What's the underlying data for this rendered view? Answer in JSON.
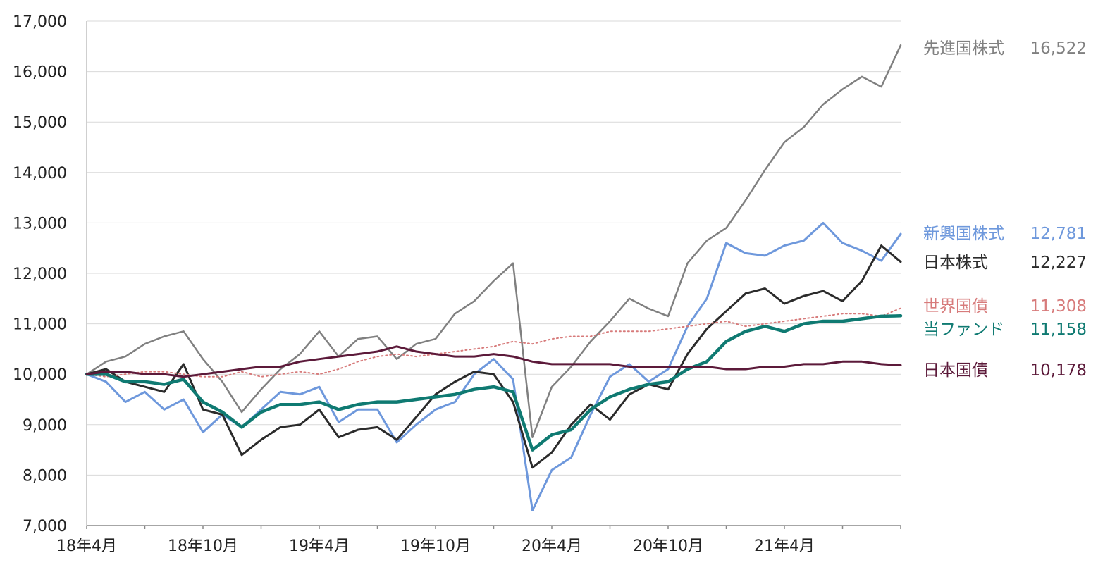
{
  "chart_data": {
    "type": "line",
    "x_ticks": [
      "18年4月",
      "18年10月",
      "19年4月",
      "19年10月",
      "20年4月",
      "20年10月",
      "21年4月"
    ],
    "y_ticks": [
      "7,000",
      "8,000",
      "9,000",
      "10,000",
      "11,000",
      "12,000",
      "13,000",
      "14,000",
      "15,000",
      "16,000",
      "17,000"
    ],
    "ylim": [
      7000,
      17000
    ],
    "x_range": [
      "2018-04",
      "2021-10"
    ],
    "grid": "horizontal",
    "legend_placement": "right",
    "series": [
      {
        "name": "先進国株式",
        "end_value": "16,522",
        "color": "#808080",
        "width": 2.5,
        "dash": "",
        "points": [
          [
            "2018-04",
            10000
          ],
          [
            "2018-05",
            10250
          ],
          [
            "2018-06",
            10350
          ],
          [
            "2018-07",
            10600
          ],
          [
            "2018-08",
            10750
          ],
          [
            "2018-09",
            10850
          ],
          [
            "2018-10",
            10300
          ],
          [
            "2018-11",
            9850
          ],
          [
            "2018-12",
            9250
          ],
          [
            "2019-01",
            9700
          ],
          [
            "2019-02",
            10100
          ],
          [
            "2019-03",
            10400
          ],
          [
            "2019-04",
            10850
          ],
          [
            "2019-05",
            10350
          ],
          [
            "2019-06",
            10700
          ],
          [
            "2019-07",
            10750
          ],
          [
            "2019-08",
            10300
          ],
          [
            "2019-09",
            10600
          ],
          [
            "2019-10",
            10700
          ],
          [
            "2019-11",
            11200
          ],
          [
            "2019-12",
            11450
          ],
          [
            "2020-01",
            11850
          ],
          [
            "2020-02",
            12200
          ],
          [
            "2020-03",
            8750
          ],
          [
            "2020-04",
            9750
          ],
          [
            "2020-05",
            10150
          ],
          [
            "2020-06",
            10650
          ],
          [
            "2020-07",
            11050
          ],
          [
            "2020-08",
            11500
          ],
          [
            "2020-09",
            11300
          ],
          [
            "2020-10",
            11150
          ],
          [
            "2020-11",
            12200
          ],
          [
            "2020-12",
            12650
          ],
          [
            "2021-01",
            12900
          ],
          [
            "2021-02",
            13450
          ],
          [
            "2021-03",
            14050
          ],
          [
            "2021-04",
            14600
          ],
          [
            "2021-05",
            14900
          ],
          [
            "2021-06",
            15350
          ],
          [
            "2021-07",
            15650
          ],
          [
            "2021-08",
            15900
          ],
          [
            "2021-09",
            15700
          ],
          [
            "2021-10",
            16522
          ]
        ]
      },
      {
        "name": "新興国株式",
        "end_value": "12,781",
        "color": "#6e98dc",
        "width": 3,
        "dash": "",
        "points": [
          [
            "2018-04",
            10000
          ],
          [
            "2018-05",
            9850
          ],
          [
            "2018-06",
            9450
          ],
          [
            "2018-07",
            9650
          ],
          [
            "2018-08",
            9300
          ],
          [
            "2018-09",
            9500
          ],
          [
            "2018-10",
            8850
          ],
          [
            "2018-11",
            9200
          ],
          [
            "2018-12",
            8950
          ],
          [
            "2019-01",
            9300
          ],
          [
            "2019-02",
            9650
          ],
          [
            "2019-03",
            9600
          ],
          [
            "2019-04",
            9750
          ],
          [
            "2019-05",
            9050
          ],
          [
            "2019-06",
            9300
          ],
          [
            "2019-07",
            9300
          ],
          [
            "2019-08",
            8650
          ],
          [
            "2019-09",
            9000
          ],
          [
            "2019-10",
            9300
          ],
          [
            "2019-11",
            9450
          ],
          [
            "2019-12",
            10000
          ],
          [
            "2020-01",
            10300
          ],
          [
            "2020-02",
            9900
          ],
          [
            "2020-03",
            7300
          ],
          [
            "2020-04",
            8100
          ],
          [
            "2020-05",
            8350
          ],
          [
            "2020-06",
            9200
          ],
          [
            "2020-07",
            9950
          ],
          [
            "2020-08",
            10200
          ],
          [
            "2020-09",
            9850
          ],
          [
            "2020-10",
            10100
          ],
          [
            "2020-11",
            10950
          ],
          [
            "2020-12",
            11500
          ],
          [
            "2021-01",
            12600
          ],
          [
            "2021-02",
            12400
          ],
          [
            "2021-03",
            12350
          ],
          [
            "2021-04",
            12550
          ],
          [
            "2021-05",
            12650
          ],
          [
            "2021-06",
            13000
          ],
          [
            "2021-07",
            12600
          ],
          [
            "2021-08",
            12450
          ],
          [
            "2021-09",
            12250
          ],
          [
            "2021-10",
            12781
          ]
        ]
      },
      {
        "name": "日本株式",
        "end_value": "12,227",
        "color": "#2b2b2b",
        "width": 3,
        "dash": "",
        "points": [
          [
            "2018-04",
            10000
          ],
          [
            "2018-05",
            10100
          ],
          [
            "2018-06",
            9850
          ],
          [
            "2018-07",
            9750
          ],
          [
            "2018-08",
            9650
          ],
          [
            "2018-09",
            10200
          ],
          [
            "2018-10",
            9300
          ],
          [
            "2018-11",
            9200
          ],
          [
            "2018-12",
            8400
          ],
          [
            "2019-01",
            8700
          ],
          [
            "2019-02",
            8950
          ],
          [
            "2019-03",
            9000
          ],
          [
            "2019-04",
            9300
          ],
          [
            "2019-05",
            8750
          ],
          [
            "2019-06",
            8900
          ],
          [
            "2019-07",
            8950
          ],
          [
            "2019-08",
            8700
          ],
          [
            "2019-09",
            9150
          ],
          [
            "2019-10",
            9600
          ],
          [
            "2019-11",
            9850
          ],
          [
            "2019-12",
            10050
          ],
          [
            "2020-01",
            10000
          ],
          [
            "2020-02",
            9450
          ],
          [
            "2020-03",
            8150
          ],
          [
            "2020-04",
            8450
          ],
          [
            "2020-05",
            9000
          ],
          [
            "2020-06",
            9400
          ],
          [
            "2020-07",
            9100
          ],
          [
            "2020-08",
            9600
          ],
          [
            "2020-09",
            9800
          ],
          [
            "2020-10",
            9700
          ],
          [
            "2020-11",
            10400
          ],
          [
            "2020-12",
            10900
          ],
          [
            "2021-01",
            11250
          ],
          [
            "2021-02",
            11600
          ],
          [
            "2021-03",
            11700
          ],
          [
            "2021-04",
            11400
          ],
          [
            "2021-05",
            11550
          ],
          [
            "2021-06",
            11650
          ],
          [
            "2021-07",
            11450
          ],
          [
            "2021-08",
            11850
          ],
          [
            "2021-09",
            12550
          ],
          [
            "2021-10",
            12227
          ]
        ]
      },
      {
        "name": "世界国債",
        "end_value": "11,308",
        "color": "#d77b7b",
        "width": 2,
        "dash": "2,4",
        "points": [
          [
            "2018-04",
            10000
          ],
          [
            "2018-05",
            9950
          ],
          [
            "2018-06",
            10000
          ],
          [
            "2018-07",
            10050
          ],
          [
            "2018-08",
            10050
          ],
          [
            "2018-09",
            10000
          ],
          [
            "2018-10",
            9950
          ],
          [
            "2018-11",
            9950
          ],
          [
            "2018-12",
            10050
          ],
          [
            "2019-01",
            9950
          ],
          [
            "2019-02",
            10000
          ],
          [
            "2019-03",
            10050
          ],
          [
            "2019-04",
            10000
          ],
          [
            "2019-05",
            10100
          ],
          [
            "2019-06",
            10250
          ],
          [
            "2019-07",
            10350
          ],
          [
            "2019-08",
            10400
          ],
          [
            "2019-09",
            10350
          ],
          [
            "2019-10",
            10400
          ],
          [
            "2019-11",
            10450
          ],
          [
            "2019-12",
            10500
          ],
          [
            "2020-01",
            10550
          ],
          [
            "2020-02",
            10650
          ],
          [
            "2020-03",
            10600
          ],
          [
            "2020-04",
            10700
          ],
          [
            "2020-05",
            10750
          ],
          [
            "2020-06",
            10750
          ],
          [
            "2020-07",
            10850
          ],
          [
            "2020-08",
            10850
          ],
          [
            "2020-09",
            10850
          ],
          [
            "2020-10",
            10900
          ],
          [
            "2020-11",
            10950
          ],
          [
            "2020-12",
            11000
          ],
          [
            "2021-01",
            11050
          ],
          [
            "2021-02",
            10950
          ],
          [
            "2021-03",
            11000
          ],
          [
            "2021-04",
            11050
          ],
          [
            "2021-05",
            11100
          ],
          [
            "2021-06",
            11150
          ],
          [
            "2021-07",
            11200
          ],
          [
            "2021-08",
            11200
          ],
          [
            "2021-09",
            11150
          ],
          [
            "2021-10",
            11308
          ]
        ]
      },
      {
        "name": "当ファンド",
        "end_value": "11,158",
        "color": "#0f7a72",
        "width": 4.5,
        "dash": "",
        "points": [
          [
            "2018-04",
            10000
          ],
          [
            "2018-05",
            10000
          ],
          [
            "2018-06",
            9850
          ],
          [
            "2018-07",
            9850
          ],
          [
            "2018-08",
            9800
          ],
          [
            "2018-09",
            9900
          ],
          [
            "2018-10",
            9450
          ],
          [
            "2018-11",
            9250
          ],
          [
            "2018-12",
            8950
          ],
          [
            "2019-01",
            9250
          ],
          [
            "2019-02",
            9400
          ],
          [
            "2019-03",
            9400
          ],
          [
            "2019-04",
            9450
          ],
          [
            "2019-05",
            9300
          ],
          [
            "2019-06",
            9400
          ],
          [
            "2019-07",
            9450
          ],
          [
            "2019-08",
            9450
          ],
          [
            "2019-09",
            9500
          ],
          [
            "2019-10",
            9550
          ],
          [
            "2019-11",
            9600
          ],
          [
            "2019-12",
            9700
          ],
          [
            "2020-01",
            9750
          ],
          [
            "2020-02",
            9650
          ],
          [
            "2020-03",
            8500
          ],
          [
            "2020-04",
            8800
          ],
          [
            "2020-05",
            8900
          ],
          [
            "2020-06",
            9300
          ],
          [
            "2020-07",
            9550
          ],
          [
            "2020-08",
            9700
          ],
          [
            "2020-09",
            9800
          ],
          [
            "2020-10",
            9850
          ],
          [
            "2020-11",
            10100
          ],
          [
            "2020-12",
            10250
          ],
          [
            "2021-01",
            10650
          ],
          [
            "2021-02",
            10850
          ],
          [
            "2021-03",
            10950
          ],
          [
            "2021-04",
            10850
          ],
          [
            "2021-05",
            11000
          ],
          [
            "2021-06",
            11050
          ],
          [
            "2021-07",
            11050
          ],
          [
            "2021-08",
            11100
          ],
          [
            "2021-09",
            11150
          ],
          [
            "2021-10",
            11158
          ]
        ]
      },
      {
        "name": "日本国債",
        "end_value": "10,178",
        "color": "#5c1a3a",
        "width": 3,
        "dash": "",
        "points": [
          [
            "2018-04",
            10000
          ],
          [
            "2018-05",
            10050
          ],
          [
            "2018-06",
            10050
          ],
          [
            "2018-07",
            10000
          ],
          [
            "2018-08",
            10000
          ],
          [
            "2018-09",
            9950
          ],
          [
            "2018-10",
            10000
          ],
          [
            "2018-11",
            10050
          ],
          [
            "2018-12",
            10100
          ],
          [
            "2019-01",
            10150
          ],
          [
            "2019-02",
            10150
          ],
          [
            "2019-03",
            10250
          ],
          [
            "2019-04",
            10300
          ],
          [
            "2019-05",
            10350
          ],
          [
            "2019-06",
            10400
          ],
          [
            "2019-07",
            10450
          ],
          [
            "2019-08",
            10550
          ],
          [
            "2019-09",
            10450
          ],
          [
            "2019-10",
            10400
          ],
          [
            "2019-11",
            10350
          ],
          [
            "2019-12",
            10350
          ],
          [
            "2020-01",
            10400
          ],
          [
            "2020-02",
            10350
          ],
          [
            "2020-03",
            10250
          ],
          [
            "2020-04",
            10200
          ],
          [
            "2020-05",
            10200
          ],
          [
            "2020-06",
            10200
          ],
          [
            "2020-07",
            10200
          ],
          [
            "2020-08",
            10150
          ],
          [
            "2020-09",
            10150
          ],
          [
            "2020-10",
            10150
          ],
          [
            "2020-11",
            10150
          ],
          [
            "2020-12",
            10150
          ],
          [
            "2021-01",
            10100
          ],
          [
            "2021-02",
            10100
          ],
          [
            "2021-03",
            10150
          ],
          [
            "2021-04",
            10150
          ],
          [
            "2021-05",
            10200
          ],
          [
            "2021-06",
            10200
          ],
          [
            "2021-07",
            10250
          ],
          [
            "2021-08",
            10250
          ],
          [
            "2021-09",
            10200
          ],
          [
            "2021-10",
            10178
          ]
        ]
      }
    ]
  }
}
